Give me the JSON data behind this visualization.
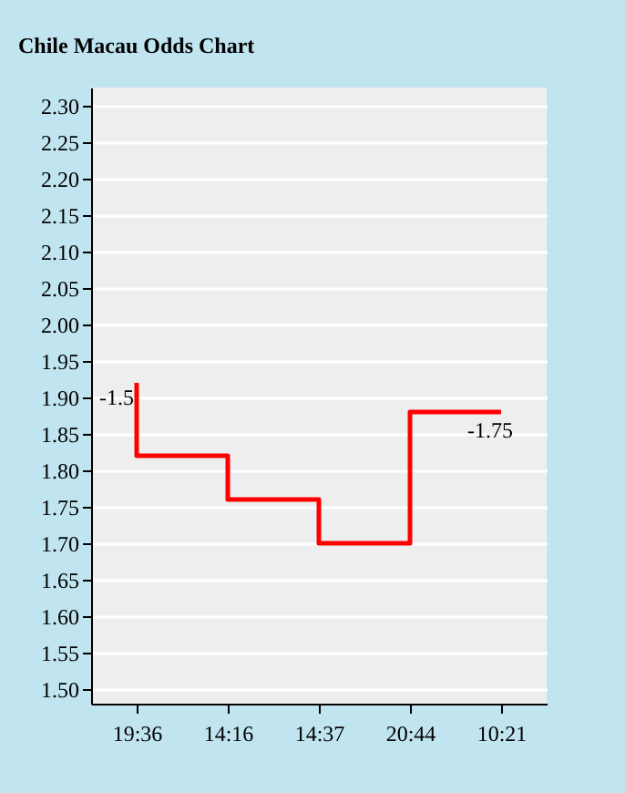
{
  "chart_data": {
    "type": "step",
    "title": "Chile Macau Odds Chart",
    "categories": [
      "19:36",
      "14:16",
      "14:37",
      "20:44",
      "10:21"
    ],
    "series": [
      {
        "color": "#ff0000",
        "values": [
          1.92,
          1.82,
          1.76,
          1.7,
          1.88
        ]
      }
    ],
    "ylim": [
      1.48,
      2.325
    ],
    "yticks": [
      {
        "value": 1.5,
        "label": "1.50"
      },
      1.55,
      {
        "value": 1.6,
        "label": "1.60"
      },
      1.65,
      {
        "value": 1.7,
        "label": "1.70"
      },
      1.75,
      {
        "value": 1.8,
        "label": "1.80"
      },
      1.85,
      {
        "value": 1.9,
        "label": "1.90"
      },
      1.95,
      {
        "value": 2.0,
        "label": "2.00"
      },
      2.05,
      {
        "value": 2.1,
        "label": "2.10"
      },
      2.15,
      {
        "value": 2.2,
        "label": "2.20"
      },
      2.25,
      {
        "value": 2.3,
        "label": "2.30"
      }
    ],
    "annotations": [
      {
        "text": "-1.5",
        "x": "19:36",
        "y": 1.9
      },
      "-1.75"
    ],
    "grid": "y",
    "marker": "none",
    "line_style": "solid"
  }
}
